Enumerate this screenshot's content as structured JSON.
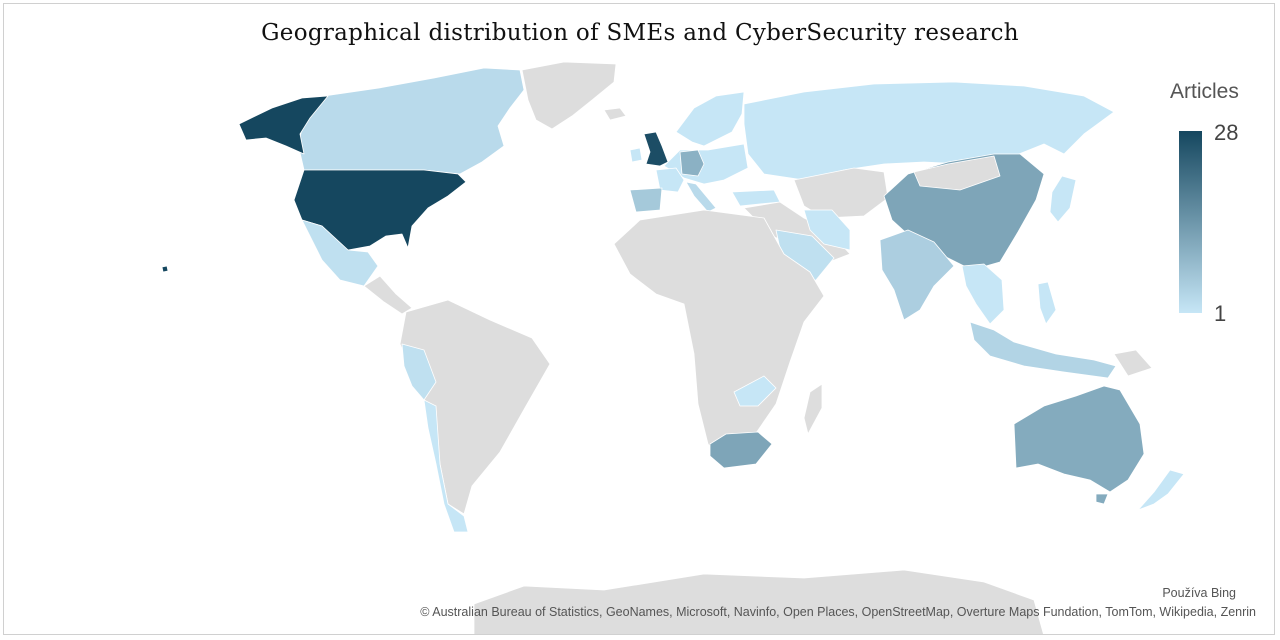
{
  "title": "Geographical distribution of SMEs and CyberSecurity research",
  "legend": {
    "title": "Articles",
    "max_label": "28",
    "min_label": "1",
    "max_value": 28,
    "min_value": 1,
    "color_low": "#c6e6f6",
    "color_high": "#15475f"
  },
  "colors": {
    "no_data": "#dddddd",
    "background": "#ffffff"
  },
  "attribution": {
    "provider": "Používa Bing",
    "credits": "© Australian Bureau of Statistics, GeoNames, Microsoft, Navinfo, Open Places, OpenStreetMap, Overture Maps Fundation, TomTom, Wikipedia, Zenrin"
  },
  "chart_data": {
    "type": "choropleth",
    "measure": "Articles",
    "range": [
      1,
      28
    ],
    "regions": [
      {
        "name": "United States",
        "value": 28
      },
      {
        "name": "United Kingdom",
        "value": 27
      },
      {
        "name": "China",
        "value": 12
      },
      {
        "name": "Australia",
        "value": 11
      },
      {
        "name": "South Africa",
        "value": 12
      },
      {
        "name": "Germany",
        "value": 10
      },
      {
        "name": "Spain",
        "value": 6
      },
      {
        "name": "India",
        "value": 5
      },
      {
        "name": "Malaysia",
        "value": 4
      },
      {
        "name": "Canada",
        "value": 3
      },
      {
        "name": "Italy",
        "value": 3
      },
      {
        "name": "Saudi Arabia",
        "value": 2
      },
      {
        "name": "Mexico",
        "value": 2
      },
      {
        "name": "Peru",
        "value": 2
      },
      {
        "name": "Chile",
        "value": 1
      },
      {
        "name": "Russia",
        "value": 1
      },
      {
        "name": "Japan",
        "value": 1
      },
      {
        "name": "New Zealand",
        "value": 1
      },
      {
        "name": "Zambia",
        "value": 1
      },
      {
        "name": "Iran",
        "value": 1
      },
      {
        "name": "Turkey",
        "value": 1
      },
      {
        "name": "Indonesia",
        "value": 1
      },
      {
        "name": "Vietnam",
        "value": 1
      },
      {
        "name": "Sweden",
        "value": 1
      },
      {
        "name": "Finland",
        "value": 1
      },
      {
        "name": "Norway",
        "value": 1
      },
      {
        "name": "Poland",
        "value": 1
      },
      {
        "name": "France",
        "value": 1
      },
      {
        "name": "Greece",
        "value": 1
      },
      {
        "name": "Portugal",
        "value": 1
      },
      {
        "name": "Ireland",
        "value": 1
      }
    ]
  }
}
